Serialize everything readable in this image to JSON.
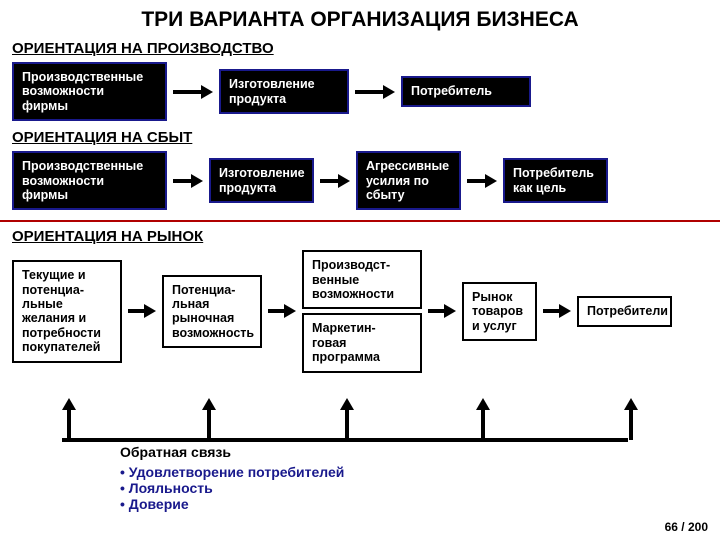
{
  "title": "ТРИ ВАРИАНТА ОРГАНИЗАЦИЯ БИЗНЕСА",
  "sections": {
    "s1": {
      "label": "ОРИЕНТАЦИЯ НА ПРОИЗВОДСТВО",
      "b1": "Производственные\nвозможности\nфирмы",
      "b2": "Изготовление\nпродукта",
      "b3": "Потребитель"
    },
    "s2": {
      "label": "ОРИЕНТАЦИЯ НА СБЫТ",
      "b1": "Производственные\nвозможности\nфирмы",
      "b2": "Изготовление\nпродукта",
      "b3": "Агрессивные\nусилия по\nсбыту",
      "b4": "Потребитель\nкак цель"
    },
    "s3": {
      "label": "ОРИЕНТАЦИЯ НА РЫНОК",
      "b1": "Текущие и\nпотенциа-\nльные\nжелания и\nпотребности\nпокупателей",
      "b2": "Потенциа-\nльная\nрыночная\nвозможность",
      "b3a": "Производст-\nвенные\nвозможности",
      "b3b": "Маркетин-\nговая\nпрограмма",
      "b4": "Рынок\nтоваров\nи услуг",
      "b5": "Потребители"
    }
  },
  "feedback": {
    "label": "Обратная связь",
    "bullets": [
      "Удовлетворение потребителей",
      "Лояльность",
      "Доверие"
    ]
  },
  "page": "66 / 200",
  "colors": {
    "rule": "#b00000",
    "border": "#19198c",
    "bullet": "#19198c"
  },
  "layout": {
    "s1_widths": [
      155,
      130,
      130
    ],
    "s2_widths": [
      155,
      105,
      105,
      105
    ],
    "s3_widths": [
      110,
      100,
      110,
      75,
      95
    ],
    "arrow_shaft": 28
  }
}
